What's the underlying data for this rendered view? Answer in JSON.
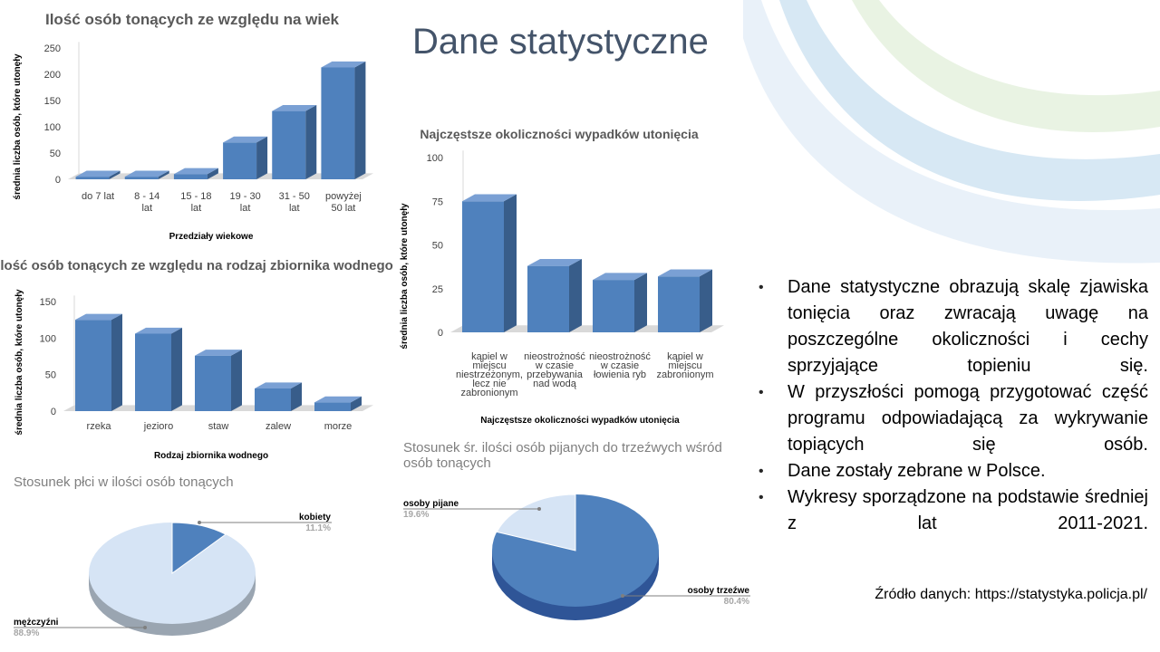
{
  "slide": {
    "title": "Dane statystyczne",
    "bullets": [
      "Dane statystyczne obrazują skalę zjawiska tonięcia oraz zwracają uwagę na poszczególne okoliczności i cechy sprzyjające topieniu się.",
      "W przyszłości pomogą przygotować część programu odpowiadającą za wykrywanie topiących się osób.",
      "Dane zostały zebrane w Polsce.",
      "Wykresy sporządzone na podstawie średniej z lat 2011-2021."
    ],
    "source": "Źródło danych: https://statystyka.policja.pl/"
  },
  "colors": {
    "bar_front": "#4f81bd",
    "bar_side": "#385d8a",
    "bar_top": "#7aa0d4",
    "pie_light": "#d6e4f5",
    "pie_dark": "#4f81bd",
    "title": "#44546a"
  },
  "chart_data": [
    {
      "id": "age",
      "type": "bar",
      "title": "Ilość osób tonących ze względu na wiek",
      "xlabel": "Przedziały wiekowe",
      "ylabel": "średnia liczba osób, które utonęły",
      "categories": [
        "do 7 lat",
        "8 - 14 lat",
        "15 - 18 lat",
        "19 - 30 lat",
        "31 - 50 lat",
        "powyżej 50 lat"
      ],
      "values": [
        5,
        5,
        10,
        70,
        130,
        213
      ],
      "yticks": [
        0,
        50,
        100,
        150,
        200,
        250
      ],
      "ylim": [
        0,
        250
      ],
      "grid": false
    },
    {
      "id": "water",
      "type": "bar",
      "title": "Ilość osób tonących ze względu na rodzaj zbiornika wodnego",
      "xlabel": "Rodzaj zbiornika wodnego",
      "ylabel": "średnia liczba osób, które utonęły",
      "categories": [
        "rzeka",
        "jezioro",
        "staw",
        "zalew",
        "morze"
      ],
      "values": [
        125,
        106,
        76,
        31,
        12
      ],
      "yticks": [
        0,
        50,
        100,
        150
      ],
      "ylim": [
        0,
        150
      ],
      "grid": false
    },
    {
      "id": "circ",
      "type": "bar",
      "title": "Najczęstsze okoliczności wypadków utonięcia",
      "xlabel": "Najczęstsze okoliczności wypadków utonięcia",
      "ylabel": "średnia liczba osób, które utonęły",
      "categories": [
        "kąpiel w miejscu niestrzeżonym, lecz nie zabronionym",
        "nieostrożność w czasie przebywania nad wodą",
        "nieostrożność w czasie łowienia ryb",
        "kąpiel w miejscu zabronionym"
      ],
      "values": [
        75,
        38,
        30,
        32
      ],
      "yticks": [
        0,
        25,
        50,
        75,
        100
      ],
      "ylim": [
        0,
        100
      ],
      "grid": false
    },
    {
      "id": "gender",
      "type": "pie",
      "title": "Stosunek płci w ilości osób tonących",
      "labels": [
        "kobiety",
        "mężczyźni"
      ],
      "values": [
        11.1,
        88.9
      ],
      "display": [
        "11.1%",
        "88.9%"
      ]
    },
    {
      "id": "drunk",
      "type": "pie",
      "title": "Stosunek śr. ilości osób pijanych do trzeźwych wśród osób tonących",
      "labels": [
        "osoby pijane",
        "osoby trzeźwe"
      ],
      "values": [
        19.6,
        80.4
      ],
      "display": [
        "19.6%",
        "80.4%"
      ]
    }
  ]
}
